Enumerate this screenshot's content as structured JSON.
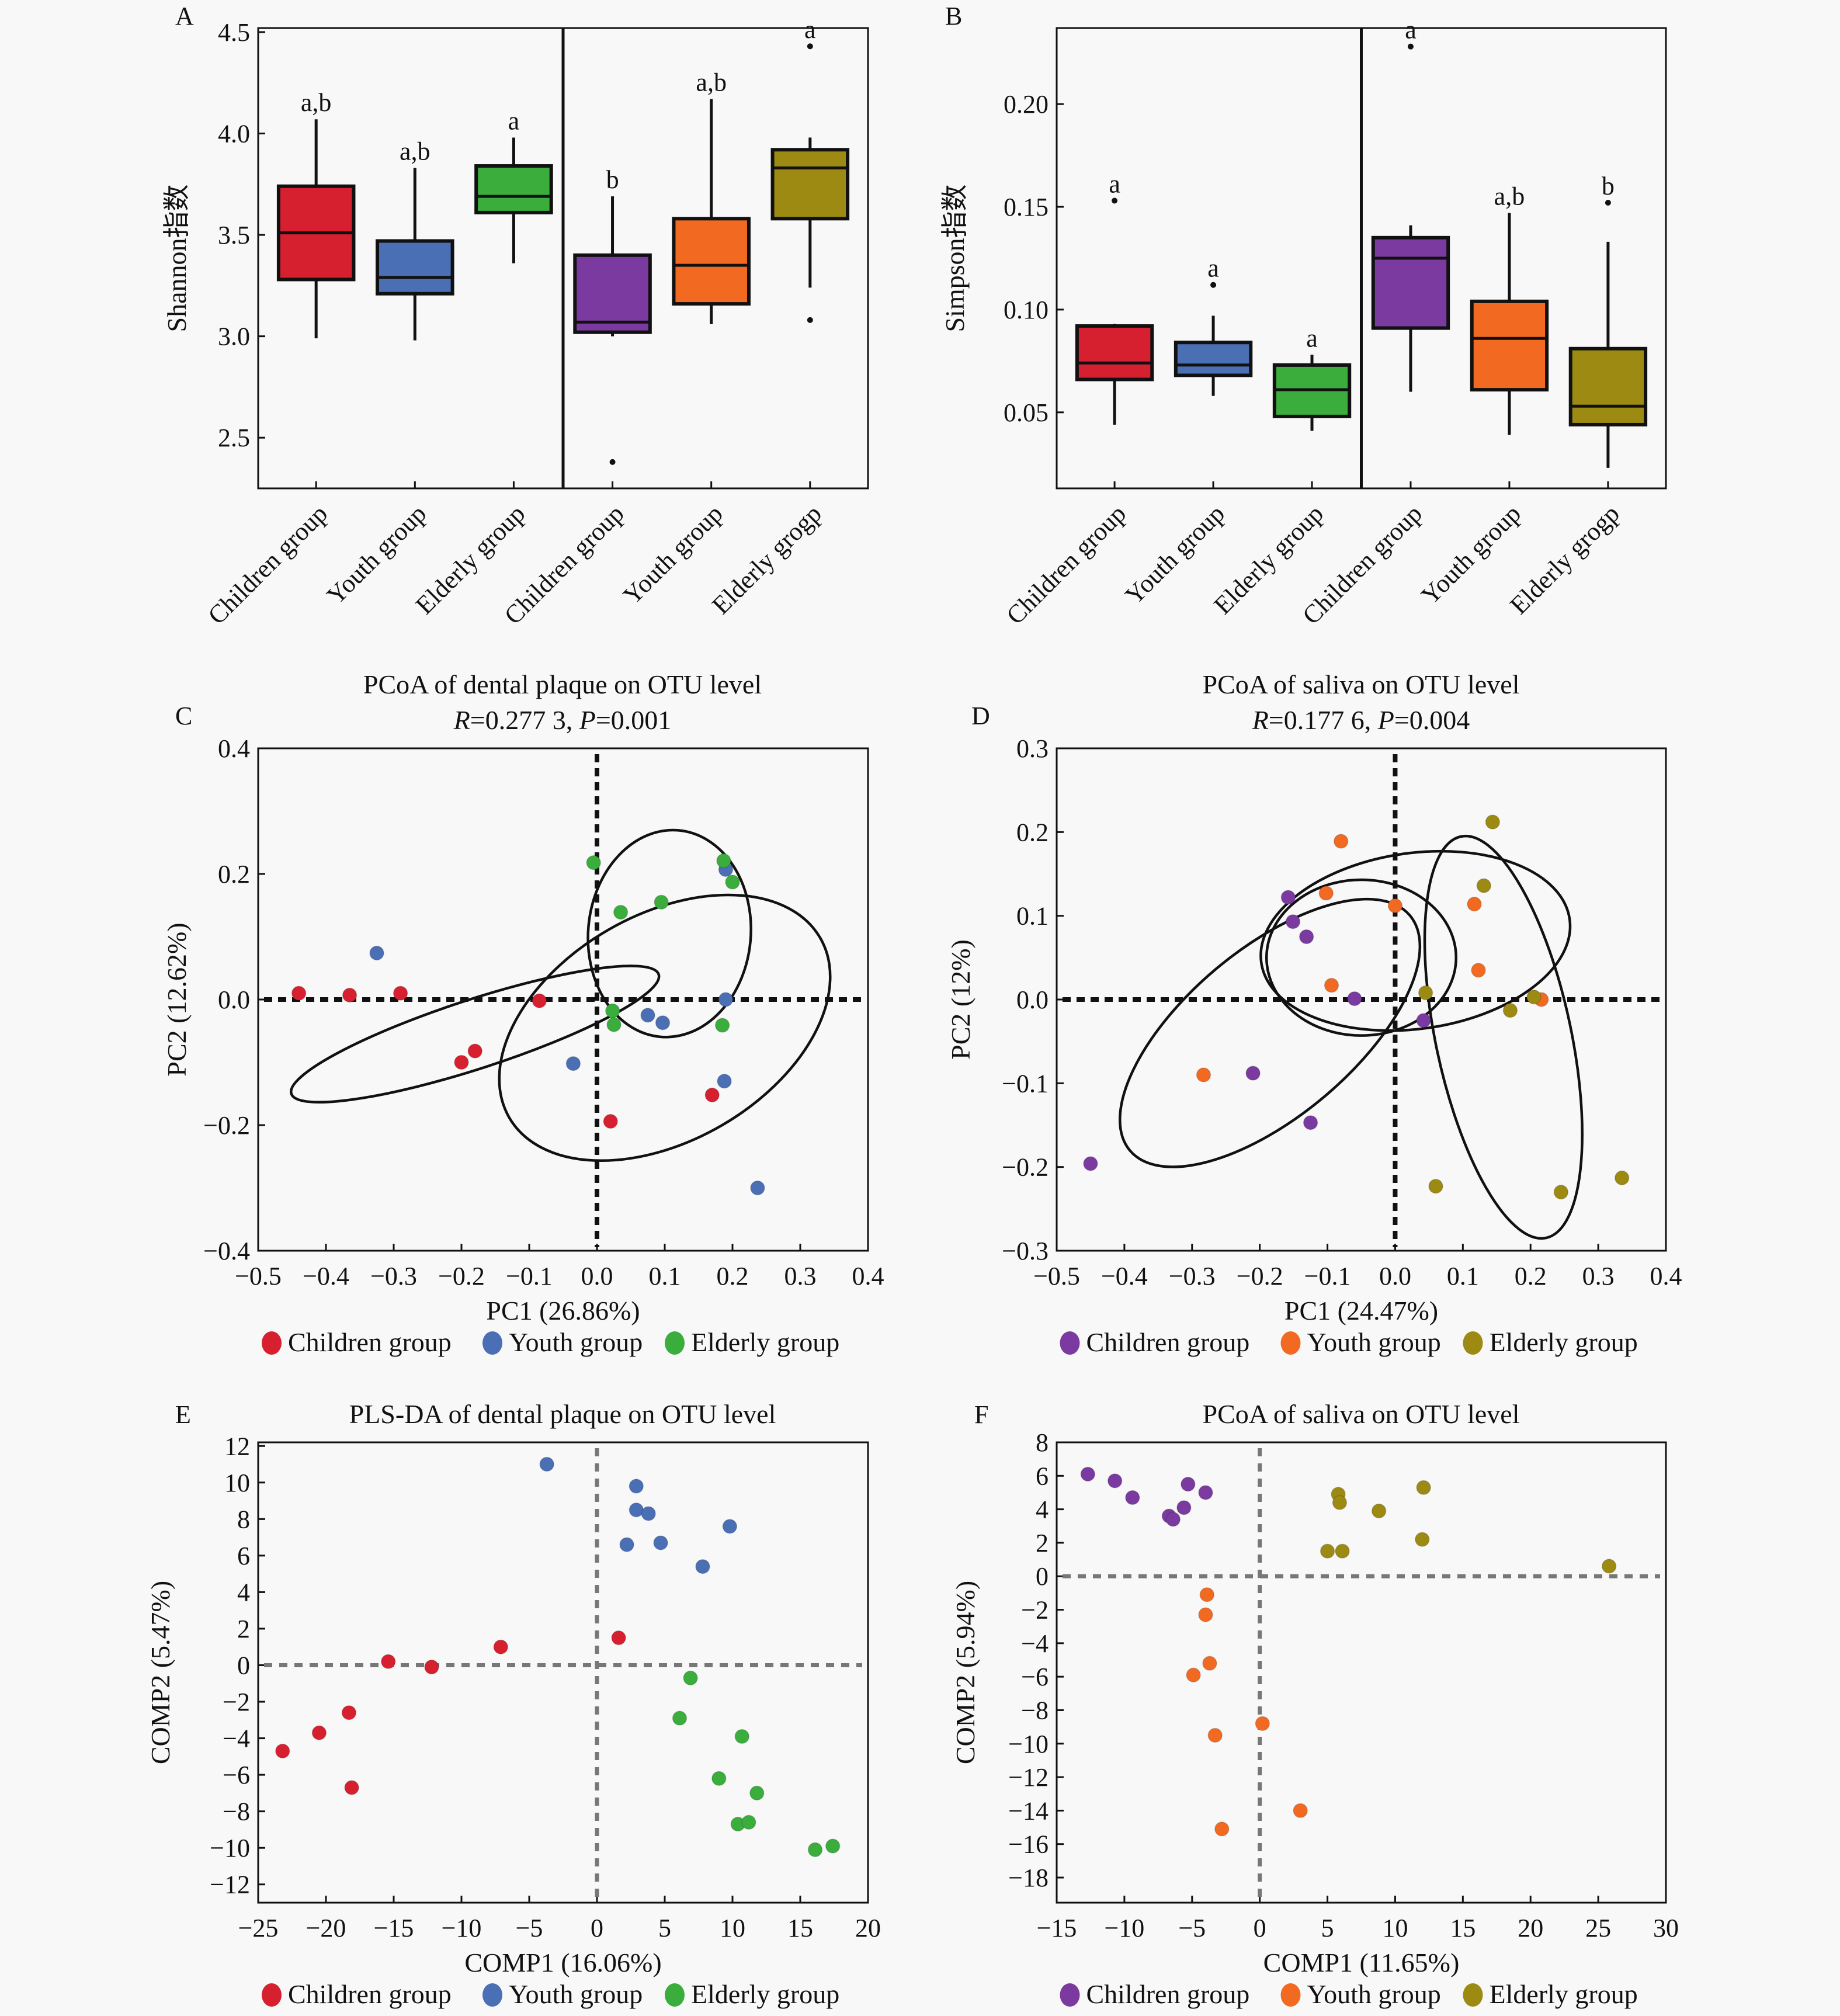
{
  "figure": {
    "panels": [
      "A",
      "B",
      "C",
      "D",
      "E",
      "F"
    ]
  },
  "colors": {
    "plaque_children": "#d7202f",
    "plaque_youth": "#4a6fb5",
    "plaque_elderly": "#3aad3c",
    "saliva_children": "#7b3aa0",
    "saliva_youth": "#f26a21",
    "saliva_elderly": "#9c8a12"
  },
  "chart_data": [
    {
      "id": "A",
      "type": "box",
      "title": "",
      "letter": "A",
      "ylabel": "Shannon指数",
      "xlabel": "",
      "ylim": [
        2.25,
        4.52
      ],
      "yticks": [
        2.5,
        3.0,
        3.5,
        4.0,
        4.5
      ],
      "ytick_labels": [
        "2.5",
        "3.0",
        "3.5",
        "4.0",
        "4.5"
      ],
      "divider_after_index": 2,
      "categories": [
        "Children group",
        "Youth group",
        "Elderly group",
        "Children group",
        "Youth group",
        "Elderly grogp"
      ],
      "boxes": [
        {
          "color_key": "plaque_children",
          "min": 2.99,
          "q1": 3.28,
          "median": 3.51,
          "q3": 3.74,
          "max": 4.07,
          "outliers": [],
          "sig": "a,b"
        },
        {
          "color_key": "plaque_youth",
          "min": 2.98,
          "q1": 3.21,
          "median": 3.29,
          "q3": 3.47,
          "max": 3.83,
          "outliers": [],
          "sig": "a,b"
        },
        {
          "color_key": "plaque_elderly",
          "min": 3.36,
          "q1": 3.61,
          "median": 3.69,
          "q3": 3.84,
          "max": 3.98,
          "outliers": [],
          "sig": "a"
        },
        {
          "color_key": "saliva_children",
          "min": 3.0,
          "q1": 3.02,
          "median": 3.07,
          "q3": 3.4,
          "max": 3.69,
          "outliers": [
            2.38
          ],
          "sig": "b"
        },
        {
          "color_key": "saliva_youth",
          "min": 3.06,
          "q1": 3.16,
          "median": 3.35,
          "q3": 3.58,
          "max": 4.17,
          "outliers": [],
          "sig": "a,b"
        },
        {
          "color_key": "saliva_elderly",
          "min": 3.24,
          "q1": 3.58,
          "median": 3.83,
          "q3": 3.92,
          "max": 3.98,
          "outliers": [
            4.43,
            3.08
          ],
          "sig": "a"
        }
      ]
    },
    {
      "id": "B",
      "type": "box",
      "title": "",
      "letter": "B",
      "ylabel": "Simpson指数",
      "xlabel": "",
      "ylim": [
        0.013,
        0.237
      ],
      "yticks": [
        0.05,
        0.1,
        0.15,
        0.2
      ],
      "ytick_labels": [
        "0.05",
        "0.10",
        "0.15",
        "0.20"
      ],
      "divider_after_index": 2,
      "categories": [
        "Children group",
        "Youth group",
        "Elderly group",
        "Children group",
        "Youth group",
        "Elderly grogp"
      ],
      "boxes": [
        {
          "color_key": "plaque_children",
          "min": 0.044,
          "q1": 0.066,
          "median": 0.074,
          "q3": 0.092,
          "max": 0.093,
          "outliers": [
            0.153
          ],
          "sig": "a"
        },
        {
          "color_key": "plaque_youth",
          "min": 0.058,
          "q1": 0.068,
          "median": 0.073,
          "q3": 0.084,
          "max": 0.097,
          "outliers": [
            0.112
          ],
          "sig": "a"
        },
        {
          "color_key": "plaque_elderly",
          "min": 0.041,
          "q1": 0.048,
          "median": 0.061,
          "q3": 0.073,
          "max": 0.078,
          "outliers": [],
          "sig": "a"
        },
        {
          "color_key": "saliva_children",
          "min": 0.06,
          "q1": 0.091,
          "median": 0.125,
          "q3": 0.135,
          "max": 0.141,
          "outliers": [
            0.228
          ],
          "sig": "a"
        },
        {
          "color_key": "saliva_youth",
          "min": 0.039,
          "q1": 0.061,
          "median": 0.086,
          "q3": 0.104,
          "max": 0.147,
          "outliers": [],
          "sig": "a,b"
        },
        {
          "color_key": "saliva_elderly",
          "min": 0.023,
          "q1": 0.044,
          "median": 0.053,
          "q3": 0.081,
          "max": 0.133,
          "outliers": [
            0.152
          ],
          "sig": "b"
        }
      ]
    },
    {
      "id": "C",
      "type": "scatter",
      "letter": "C",
      "title": "PCoA of dental plaque on OTU level",
      "subtitle": {
        "r_label": "R",
        "r_value": "=0.277 3, ",
        "p_label": "P",
        "p_value": "=0.001"
      },
      "xlabel": "PC1 (26.86%)",
      "ylabel": "PC2 (12.62%)",
      "xlim": [
        -0.5,
        0.4
      ],
      "ylim": [
        -0.4,
        0.4
      ],
      "xticks": [
        -0.5,
        -0.4,
        -0.3,
        -0.2,
        -0.1,
        0.0,
        0.1,
        0.2,
        0.3,
        0.4
      ],
      "xtick_labels": [
        "−0.5",
        "−0.4",
        "−0.3",
        "−0.2",
        "−0.1",
        "0.0",
        "0.1",
        "0.2",
        "0.3",
        "0.4"
      ],
      "yticks": [
        -0.4,
        -0.2,
        0.0,
        0.2,
        0.4
      ],
      "ytick_labels": [
        "−0.4",
        "−0.2",
        "0.0",
        "0.2",
        "0.4"
      ],
      "refline_style": "black",
      "legend_position": "bottom",
      "series": [
        {
          "name": "Children group",
          "color_key": "plaque_children",
          "points": [
            [
              -0.44,
              0.01
            ],
            [
              -0.365,
              0.007
            ],
            [
              -0.29,
              0.01
            ],
            [
              -0.085,
              -0.002
            ],
            [
              -0.2,
              -0.1
            ],
            [
              -0.18,
              -0.082
            ],
            [
              0.02,
              -0.194
            ],
            [
              0.17,
              -0.152
            ]
          ]
        },
        {
          "name": "Youth group",
          "color_key": "plaque_youth",
          "points": [
            [
              -0.325,
              0.074
            ],
            [
              -0.035,
              -0.102
            ],
            [
              0.075,
              -0.025
            ],
            [
              0.097,
              -0.037
            ],
            [
              0.19,
              0.0
            ],
            [
              0.188,
              -0.13
            ],
            [
              0.19,
              0.207
            ],
            [
              0.237,
              -0.3
            ]
          ]
        },
        {
          "name": "Elderly group",
          "color_key": "plaque_elderly",
          "points": [
            [
              -0.005,
              0.218
            ],
            [
              0.035,
              0.139
            ],
            [
              0.095,
              0.155
            ],
            [
              0.187,
              0.221
            ],
            [
              0.2,
              0.187
            ],
            [
              0.023,
              -0.018
            ],
            [
              0.025,
              -0.04
            ],
            [
              0.185,
              -0.041
            ]
          ]
        }
      ],
      "ellipses": [
        {
          "cx": -0.18,
          "cy": -0.055,
          "rx": 0.285,
          "ry": 0.055,
          "angle_deg": -18
        },
        {
          "cx": 0.1,
          "cy": -0.045,
          "rx": 0.265,
          "ry": 0.18,
          "angle_deg": -30
        },
        {
          "cx": 0.107,
          "cy": 0.105,
          "rx": 0.12,
          "ry": 0.165,
          "angle_deg": 5
        }
      ]
    },
    {
      "id": "D",
      "type": "scatter",
      "letter": "D",
      "title": "PCoA of saliva on OTU level",
      "subtitle": {
        "r_label": "R",
        "r_value": "=0.177 6, ",
        "p_label": "P",
        "p_value": "=0.004"
      },
      "xlabel": "PC1 (24.47%)",
      "ylabel": "PC2 (12%)",
      "xlim": [
        -0.5,
        0.4
      ],
      "ylim": [
        -0.3,
        0.3
      ],
      "xticks": [
        -0.5,
        -0.4,
        -0.3,
        -0.2,
        -0.1,
        0.0,
        0.1,
        0.2,
        0.3,
        0.4
      ],
      "xtick_labels": [
        "−0.5",
        "−0.4",
        "−0.3",
        "−0.2",
        "−0.1",
        "0.0",
        "0.1",
        "0.2",
        "0.3",
        "0.4"
      ],
      "yticks": [
        -0.3,
        -0.2,
        -0.1,
        0.0,
        0.1,
        0.2,
        0.3
      ],
      "ytick_labels": [
        "−0.3",
        "−0.2",
        "−0.1",
        "0.0",
        "0.1",
        "0.2",
        "0.3"
      ],
      "refline_style": "black",
      "legend_position": "bottom",
      "series": [
        {
          "name": "Children group",
          "color_key": "saliva_children",
          "points": [
            [
              -0.158,
              0.122
            ],
            [
              -0.151,
              0.093
            ],
            [
              -0.131,
              0.075
            ],
            [
              -0.06,
              0.001
            ],
            [
              -0.21,
              -0.088
            ],
            [
              -0.125,
              -0.147
            ],
            [
              -0.45,
              -0.196
            ],
            [
              0.042,
              -0.025
            ]
          ]
        },
        {
          "name": "Youth group",
          "color_key": "saliva_youth",
          "points": [
            [
              -0.08,
              0.189
            ],
            [
              -0.102,
              0.127
            ],
            [
              0.0,
              0.112
            ],
            [
              -0.094,
              0.017
            ],
            [
              -0.283,
              -0.09
            ],
            [
              0.117,
              0.114
            ],
            [
              0.123,
              0.035
            ],
            [
              0.216,
              0.0
            ]
          ]
        },
        {
          "name": "Elderly group",
          "color_key": "saliva_elderly",
          "points": [
            [
              0.144,
              0.212
            ],
            [
              0.131,
              0.136
            ],
            [
              0.045,
              0.008
            ],
            [
              0.17,
              -0.013
            ],
            [
              0.205,
              0.003
            ],
            [
              0.06,
              -0.223
            ],
            [
              0.245,
              -0.23
            ],
            [
              0.335,
              -0.213
            ]
          ]
        }
      ],
      "ellipses": [
        {
          "cx": -0.185,
          "cy": -0.04,
          "rx": 0.27,
          "ry": 0.1,
          "angle_deg": -40
        },
        {
          "cx": -0.05,
          "cy": 0.05,
          "rx": 0.14,
          "ry": 0.093,
          "angle_deg": 0
        },
        {
          "cx": 0.03,
          "cy": 0.07,
          "rx": 0.23,
          "ry": 0.105,
          "angle_deg": -8
        },
        {
          "cx": 0.16,
          "cy": -0.045,
          "rx": 0.1,
          "ry": 0.245,
          "angle_deg": -12
        }
      ]
    },
    {
      "id": "E",
      "type": "scatter",
      "letter": "E",
      "title": "PLS-DA of dental plaque on OTU level",
      "xlabel": "COMP1 (16.06%)",
      "ylabel": "COMP2 (5.47%)",
      "xlim": [
        -25,
        20
      ],
      "ylim": [
        -13,
        12.2
      ],
      "xticks": [
        -25,
        -20,
        -15,
        -10,
        -5,
        0,
        5,
        10,
        15,
        20
      ],
      "xtick_labels": [
        "−25",
        "−20",
        "−15",
        "−10",
        "−5",
        "0",
        "5",
        "10",
        "15",
        "20"
      ],
      "yticks": [
        -12,
        -10,
        -8,
        -6,
        -4,
        -2,
        0,
        2,
        4,
        6,
        8,
        10,
        12
      ],
      "ytick_labels": [
        "−12",
        "−10",
        "−8",
        "−6",
        "−4",
        "−2",
        "0",
        "2",
        "4",
        "6",
        "8",
        "10",
        "12"
      ],
      "refline_style": "grey",
      "legend_position": "bottom",
      "series": [
        {
          "name": "Children group",
          "color_key": "plaque_children",
          "points": [
            [
              -23.2,
              -4.7
            ],
            [
              -20.5,
              -3.7
            ],
            [
              -18.3,
              -2.6
            ],
            [
              -18.1,
              -6.7
            ],
            [
              -15.4,
              0.2
            ],
            [
              -12.2,
              -0.1
            ],
            [
              -7.1,
              1.0
            ],
            [
              1.6,
              1.5
            ]
          ]
        },
        {
          "name": "Youth group",
          "color_key": "plaque_youth",
          "points": [
            [
              -3.7,
              11.0
            ],
            [
              2.9,
              9.8
            ],
            [
              2.9,
              8.5
            ],
            [
              3.8,
              8.3
            ],
            [
              2.2,
              6.6
            ],
            [
              4.7,
              6.7
            ],
            [
              9.8,
              7.6
            ],
            [
              7.8,
              5.4
            ]
          ]
        },
        {
          "name": "Elderly group",
          "color_key": "plaque_elderly",
          "points": [
            [
              6.9,
              -0.7
            ],
            [
              6.1,
              -2.9
            ],
            [
              10.7,
              -3.9
            ],
            [
              9.0,
              -6.2
            ],
            [
              11.8,
              -7.0
            ],
            [
              10.4,
              -8.7
            ],
            [
              11.2,
              -8.6
            ],
            [
              16.1,
              -10.1
            ],
            [
              17.4,
              -9.9
            ]
          ]
        }
      ],
      "ellipses": []
    },
    {
      "id": "F",
      "type": "scatter",
      "letter": "F",
      "title": "PCoA of saliva on OTU level",
      "xlabel": "COMP1 (11.65%)",
      "ylabel": "COMP2 (5.94%)",
      "xlim": [
        -15,
        30
      ],
      "ylim": [
        -19.5,
        8
      ],
      "xticks": [
        -15,
        -10,
        -5,
        0,
        5,
        10,
        15,
        20,
        25,
        30
      ],
      "xtick_labels": [
        "−15",
        "−10",
        "−5",
        "0",
        "5",
        "10",
        "15",
        "20",
        "25",
        "30"
      ],
      "yticks": [
        -18,
        -16,
        -14,
        -12,
        -10,
        -8,
        -6,
        -4,
        -2,
        0,
        2,
        4,
        6,
        8
      ],
      "ytick_labels": [
        "−18",
        "−16",
        "−14",
        "−12",
        "−10",
        "−8",
        "−6",
        "−4",
        "−2",
        "0",
        "2",
        "4",
        "6",
        "8"
      ],
      "refline_style": "grey",
      "legend_position": "bottom",
      "series": [
        {
          "name": "Children group",
          "color_key": "saliva_children",
          "points": [
            [
              -12.7,
              6.1
            ],
            [
              -10.7,
              5.7
            ],
            [
              -9.4,
              4.7
            ],
            [
              -6.7,
              3.6
            ],
            [
              -6.4,
              3.4
            ],
            [
              -5.6,
              4.1
            ],
            [
              -5.3,
              5.5
            ],
            [
              -4.0,
              5.0
            ]
          ]
        },
        {
          "name": "Youth group",
          "color_key": "saliva_youth",
          "points": [
            [
              -3.9,
              -1.1
            ],
            [
              -4.0,
              -2.3
            ],
            [
              -3.7,
              -5.2
            ],
            [
              -4.9,
              -5.9
            ],
            [
              0.2,
              -8.8
            ],
            [
              -3.3,
              -9.5
            ],
            [
              -2.8,
              -15.1
            ],
            [
              3.0,
              -14.0
            ]
          ]
        },
        {
          "name": "Elderly group",
          "color_key": "saliva_elderly",
          "points": [
            [
              5.8,
              4.9
            ],
            [
              5.9,
              4.4
            ],
            [
              8.8,
              3.9
            ],
            [
              12.1,
              5.3
            ],
            [
              12.0,
              2.2
            ],
            [
              5.0,
              1.5
            ],
            [
              6.1,
              1.5
            ],
            [
              25.8,
              0.6
            ]
          ]
        }
      ],
      "ellipses": []
    }
  ]
}
